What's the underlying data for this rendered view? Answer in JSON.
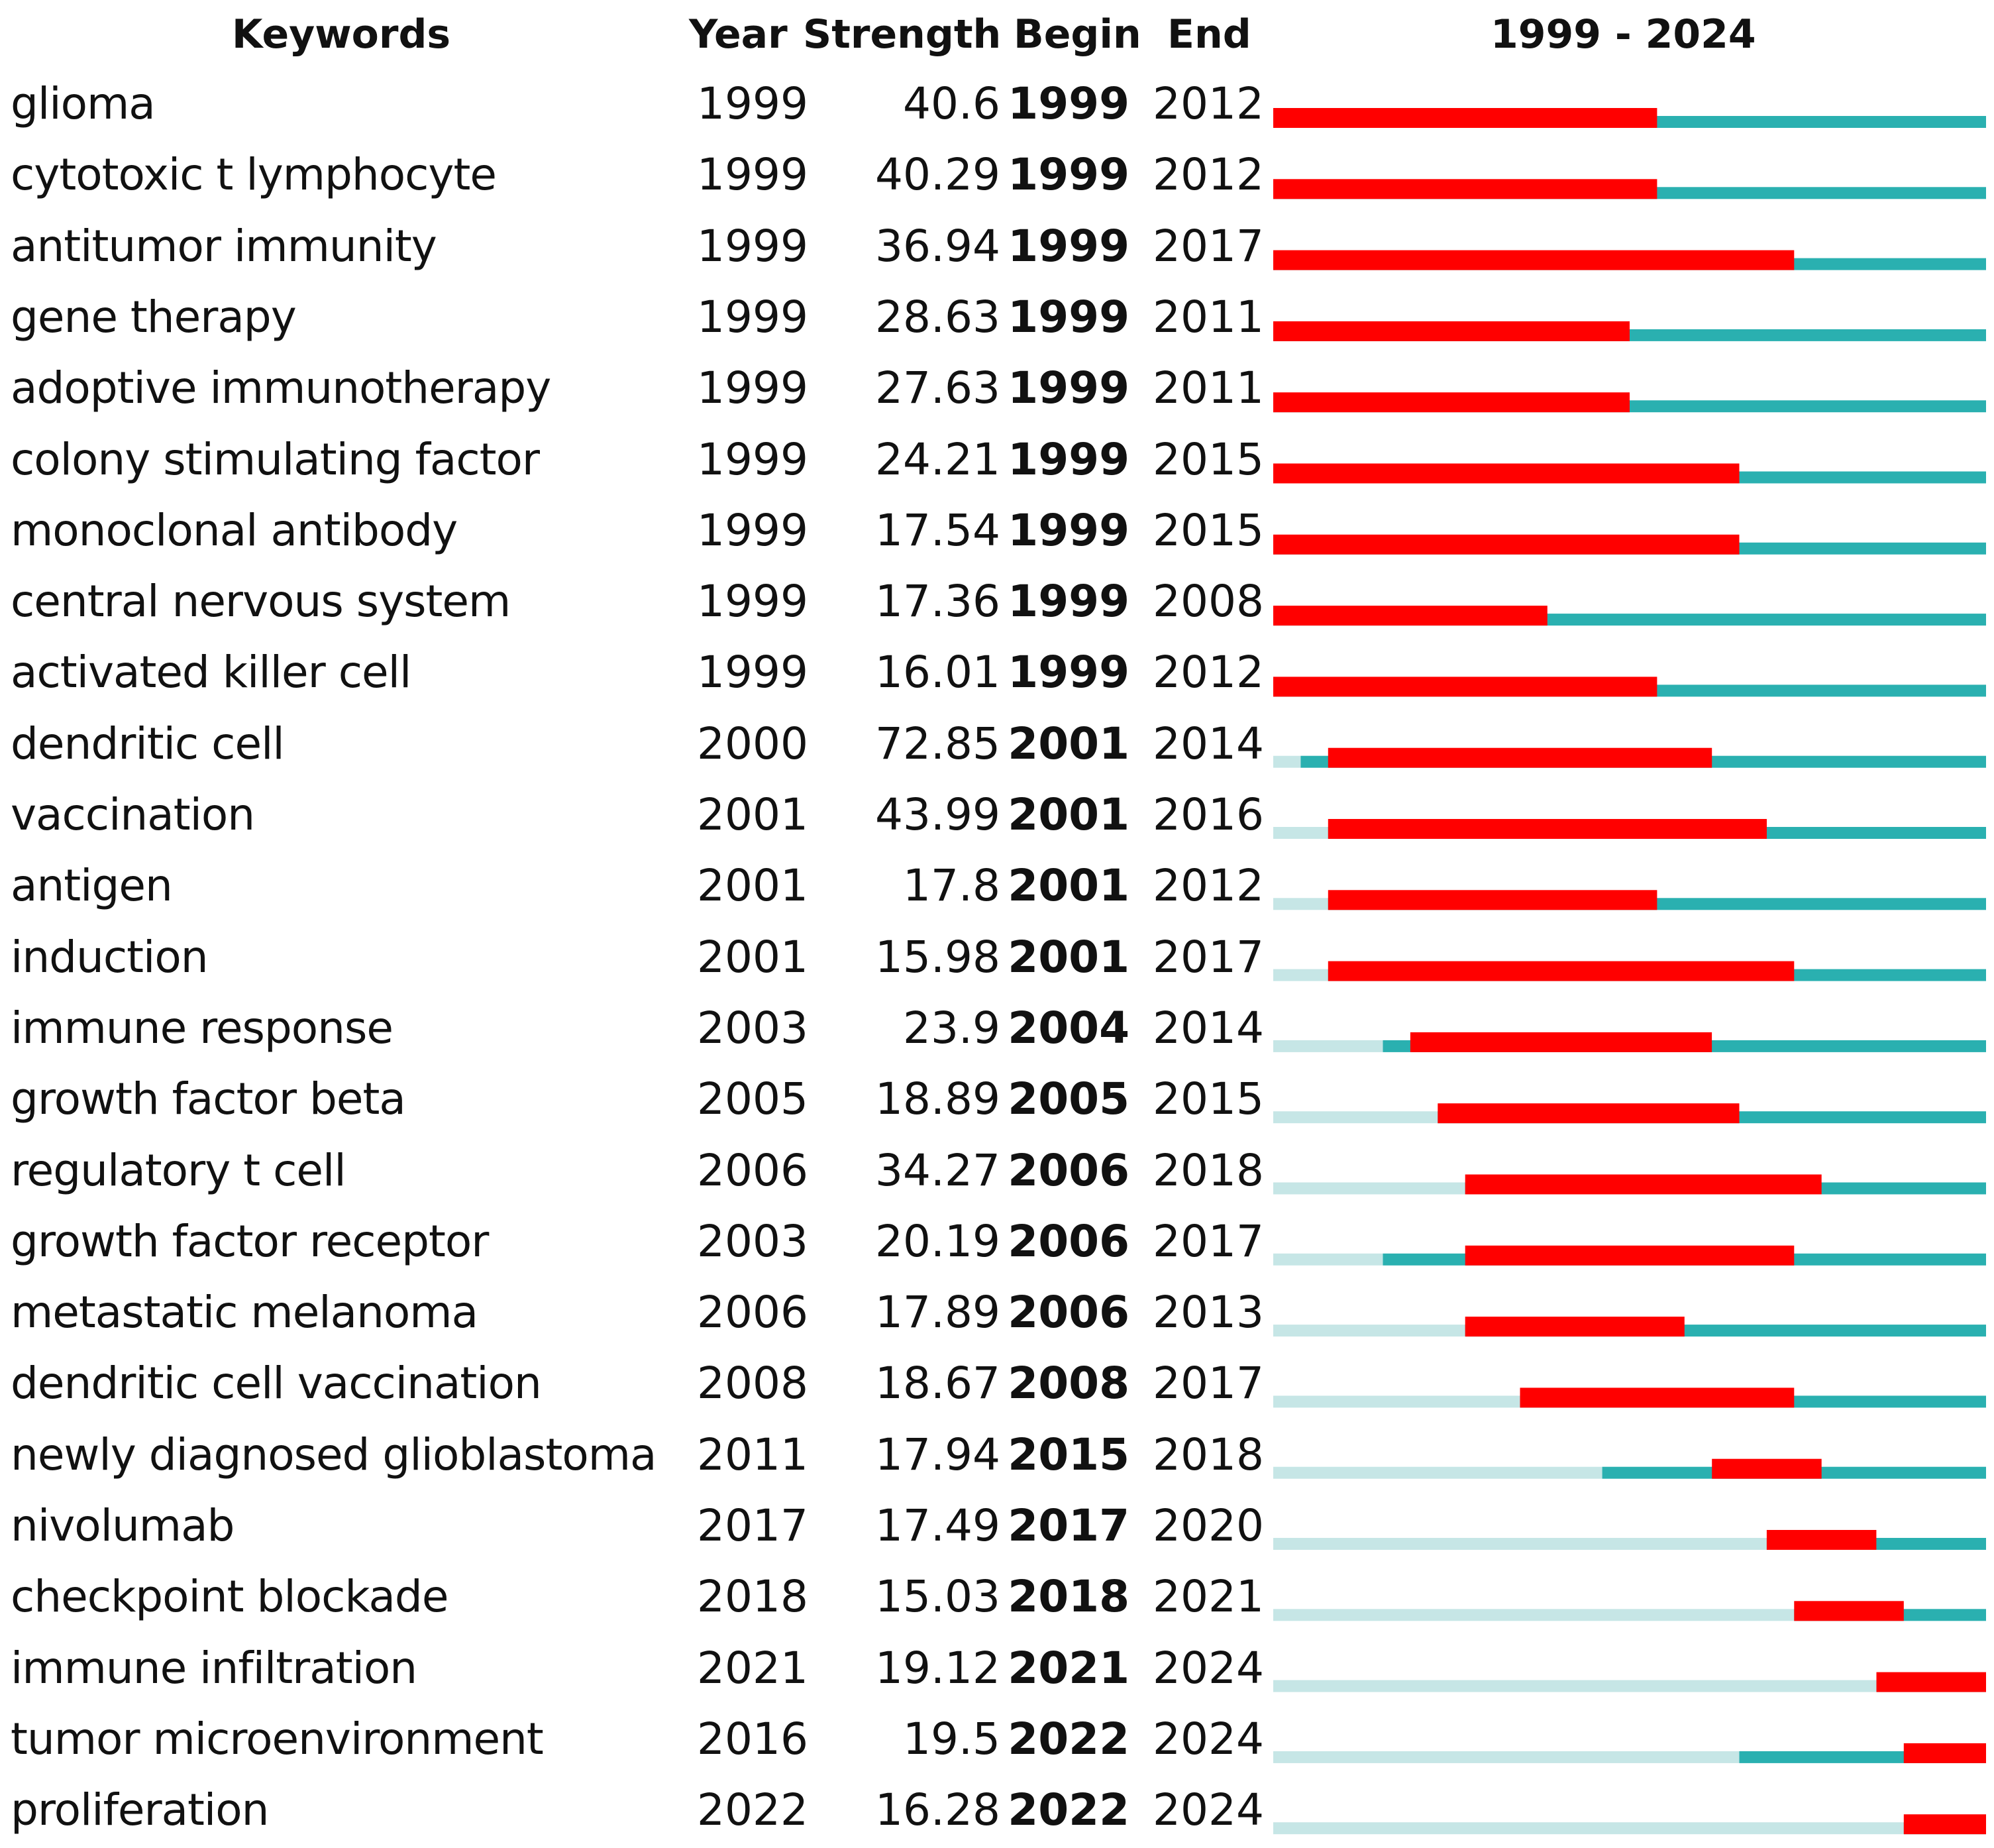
{
  "chart_data": {
    "type": "burst-timeline",
    "title": "1999 - 2024",
    "range_start": 1999,
    "range_end": 2024,
    "columns": {
      "keyword": "Keywords",
      "year": "Year",
      "strength": "Strength",
      "begin": "Begin",
      "end": "End"
    },
    "colors": {
      "burst": "#ff0000",
      "active": "#2ab0b0",
      "inactive": "#c6e6e6"
    },
    "rows": [
      {
        "keyword": "glioma",
        "year": "1999",
        "strength": "40.6",
        "begin": "1999",
        "end": "2012"
      },
      {
        "keyword": "cytotoxic t lymphocyte",
        "year": "1999",
        "strength": "40.29",
        "begin": "1999",
        "end": "2012"
      },
      {
        "keyword": "antitumor immunity",
        "year": "1999",
        "strength": "36.94",
        "begin": "1999",
        "end": "2017"
      },
      {
        "keyword": "gene therapy",
        "year": "1999",
        "strength": "28.63",
        "begin": "1999",
        "end": "2011"
      },
      {
        "keyword": "adoptive immunotherapy",
        "year": "1999",
        "strength": "27.63",
        "begin": "1999",
        "end": "2011"
      },
      {
        "keyword": "colony stimulating factor",
        "year": "1999",
        "strength": "24.21",
        "begin": "1999",
        "end": "2015"
      },
      {
        "keyword": "monoclonal antibody",
        "year": "1999",
        "strength": "17.54",
        "begin": "1999",
        "end": "2015"
      },
      {
        "keyword": "central nervous system",
        "year": "1999",
        "strength": "17.36",
        "begin": "1999",
        "end": "2008"
      },
      {
        "keyword": "activated killer cell",
        "year": "1999",
        "strength": "16.01",
        "begin": "1999",
        "end": "2012"
      },
      {
        "keyword": "dendritic cell",
        "year": "2000",
        "strength": "72.85",
        "begin": "2001",
        "end": "2014"
      },
      {
        "keyword": "vaccination",
        "year": "2001",
        "strength": "43.99",
        "begin": "2001",
        "end": "2016"
      },
      {
        "keyword": "antigen",
        "year": "2001",
        "strength": "17.8",
        "begin": "2001",
        "end": "2012"
      },
      {
        "keyword": "induction",
        "year": "2001",
        "strength": "15.98",
        "begin": "2001",
        "end": "2017"
      },
      {
        "keyword": "immune response",
        "year": "2003",
        "strength": "23.9",
        "begin": "2004",
        "end": "2014"
      },
      {
        "keyword": "growth factor beta",
        "year": "2005",
        "strength": "18.89",
        "begin": "2005",
        "end": "2015"
      },
      {
        "keyword": "regulatory t cell",
        "year": "2006",
        "strength": "34.27",
        "begin": "2006",
        "end": "2018"
      },
      {
        "keyword": "growth factor receptor",
        "year": "2003",
        "strength": "20.19",
        "begin": "2006",
        "end": "2017"
      },
      {
        "keyword": "metastatic melanoma",
        "year": "2006",
        "strength": "17.89",
        "begin": "2006",
        "end": "2013"
      },
      {
        "keyword": "dendritic cell vaccination",
        "year": "2008",
        "strength": "18.67",
        "begin": "2008",
        "end": "2017"
      },
      {
        "keyword": "newly diagnosed glioblastoma",
        "year": "2011",
        "strength": "17.94",
        "begin": "2015",
        "end": "2018"
      },
      {
        "keyword": "nivolumab",
        "year": "2017",
        "strength": "17.49",
        "begin": "2017",
        "end": "2020"
      },
      {
        "keyword": "checkpoint blockade",
        "year": "2018",
        "strength": "15.03",
        "begin": "2018",
        "end": "2021"
      },
      {
        "keyword": "immune infiltration",
        "year": "2021",
        "strength": "19.12",
        "begin": "2021",
        "end": "2024"
      },
      {
        "keyword": "tumor microenvironment",
        "year": "2016",
        "strength": "19.5",
        "begin": "2022",
        "end": "2024"
      },
      {
        "keyword": "proliferation",
        "year": "2022",
        "strength": "16.28",
        "begin": "2022",
        "end": "2024"
      }
    ]
  }
}
